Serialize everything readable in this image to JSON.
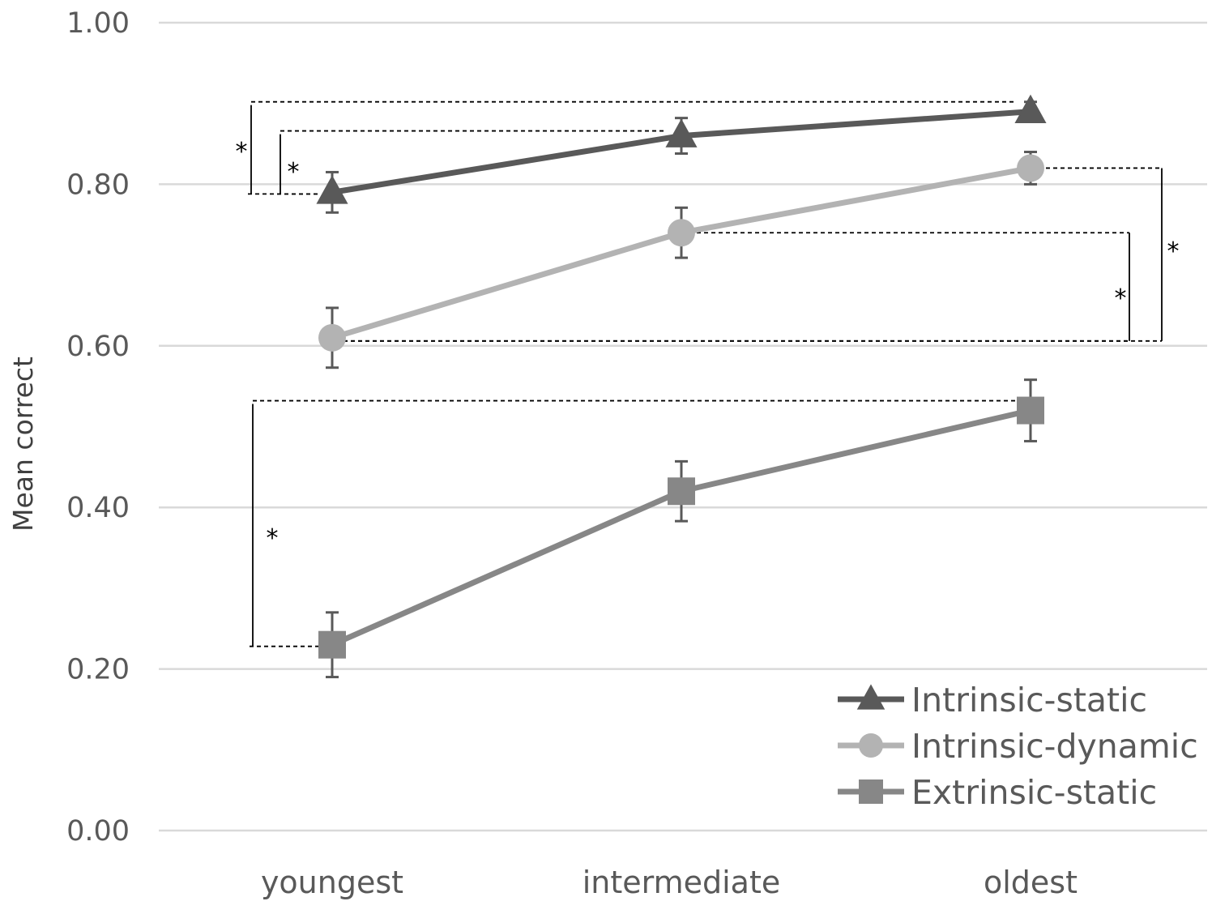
{
  "chart_data": {
    "type": "line",
    "title": "",
    "xlabel": "",
    "ylabel": "Mean correct",
    "ylim": [
      0,
      1
    ],
    "yticks": [
      0.0,
      0.2,
      0.4,
      0.6,
      0.8,
      1.0
    ],
    "ytick_labels": [
      "0.00",
      "0.20",
      "0.40",
      "0.60",
      "0.80",
      "1.00"
    ],
    "categories": [
      "youngest",
      "intermediate",
      "oldest"
    ],
    "grid": true,
    "legend_position": "bottom-right",
    "series": [
      {
        "name": "Intrinsic-static",
        "marker": "triangle",
        "color": "#595959",
        "values": [
          0.79,
          0.86,
          0.89
        ],
        "error": [
          0.025,
          0.022,
          0.012
        ]
      },
      {
        "name": "Intrinsic-dynamic",
        "marker": "circle",
        "color": "#b3b3b3",
        "values": [
          0.61,
          0.74,
          0.82
        ],
        "error": [
          0.037,
          0.031,
          0.02
        ]
      },
      {
        "name": "Extrinsic-static",
        "marker": "square",
        "color": "#878787",
        "values": [
          0.23,
          0.42,
          0.52
        ],
        "error": [
          0.04,
          0.037,
          0.038
        ]
      }
    ],
    "significance": [
      {
        "series": "Intrinsic-static",
        "from": "youngest",
        "to": "oldest",
        "label": "*"
      },
      {
        "series": "Intrinsic-static",
        "from": "youngest",
        "to": "intermediate",
        "label": "*"
      },
      {
        "series": "Intrinsic-dynamic",
        "from": "youngest",
        "to": "intermediate",
        "label": "*"
      },
      {
        "series": "Intrinsic-dynamic",
        "from": "youngest",
        "to": "oldest",
        "label": "*"
      },
      {
        "series": "Extrinsic-static",
        "from": "youngest",
        "to": "oldest",
        "label": "*"
      }
    ]
  }
}
